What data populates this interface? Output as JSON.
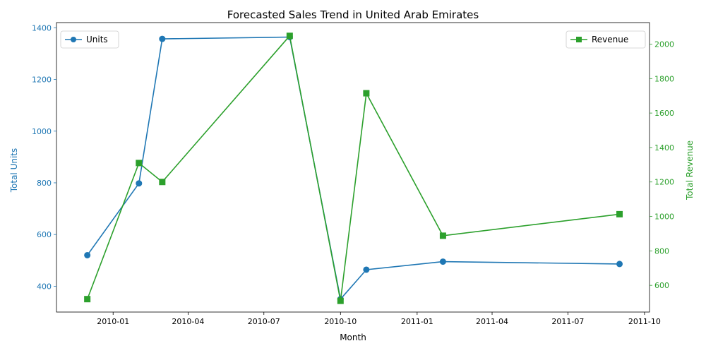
{
  "chart_data": {
    "type": "line",
    "title": "Forecasted Sales Trend in United Arab Emirates",
    "xlabel": "Month",
    "ylabel": "Total Units",
    "ylabel2": "Total Revenue",
    "x": [
      "2009-12-01",
      "2010-02-01",
      "2010-03-01",
      "2010-08-01",
      "2010-10-01",
      "2010-11-01",
      "2011-02-01",
      "2011-09-01"
    ],
    "xlim": [
      "2009-10-25",
      "2011-10-07"
    ],
    "xticks": [
      "2010-01-01",
      "2010-04-01",
      "2010-07-01",
      "2010-10-01",
      "2011-01-01",
      "2011-04-01",
      "2011-07-01",
      "2011-10-01"
    ],
    "xtick_labels": [
      "2010-01",
      "2010-04",
      "2010-07",
      "2010-10",
      "2011-01",
      "2011-04",
      "2011-07",
      "2011-10"
    ],
    "ylim": [
      300,
      1420
    ],
    "yticks": [
      400,
      600,
      800,
      1000,
      1200,
      1400
    ],
    "ylim2": [
      445,
      2125
    ],
    "yticks2": [
      600,
      800,
      1000,
      1200,
      1400,
      1600,
      1800,
      2000
    ],
    "grid": false,
    "series": [
      {
        "name": "Units",
        "axis": "left",
        "color": "#1f77b4",
        "marker": "circle",
        "legend": "top-left",
        "values": [
          520,
          798,
          1357,
          1364,
          350,
          464,
          495,
          486
        ]
      },
      {
        "name": "Revenue",
        "axis": "right",
        "color": "#2ca02c",
        "marker": "square",
        "legend": "top-right",
        "values": [
          520,
          1310,
          1200,
          2048,
          510,
          1715,
          888,
          1013
        ]
      }
    ]
  }
}
